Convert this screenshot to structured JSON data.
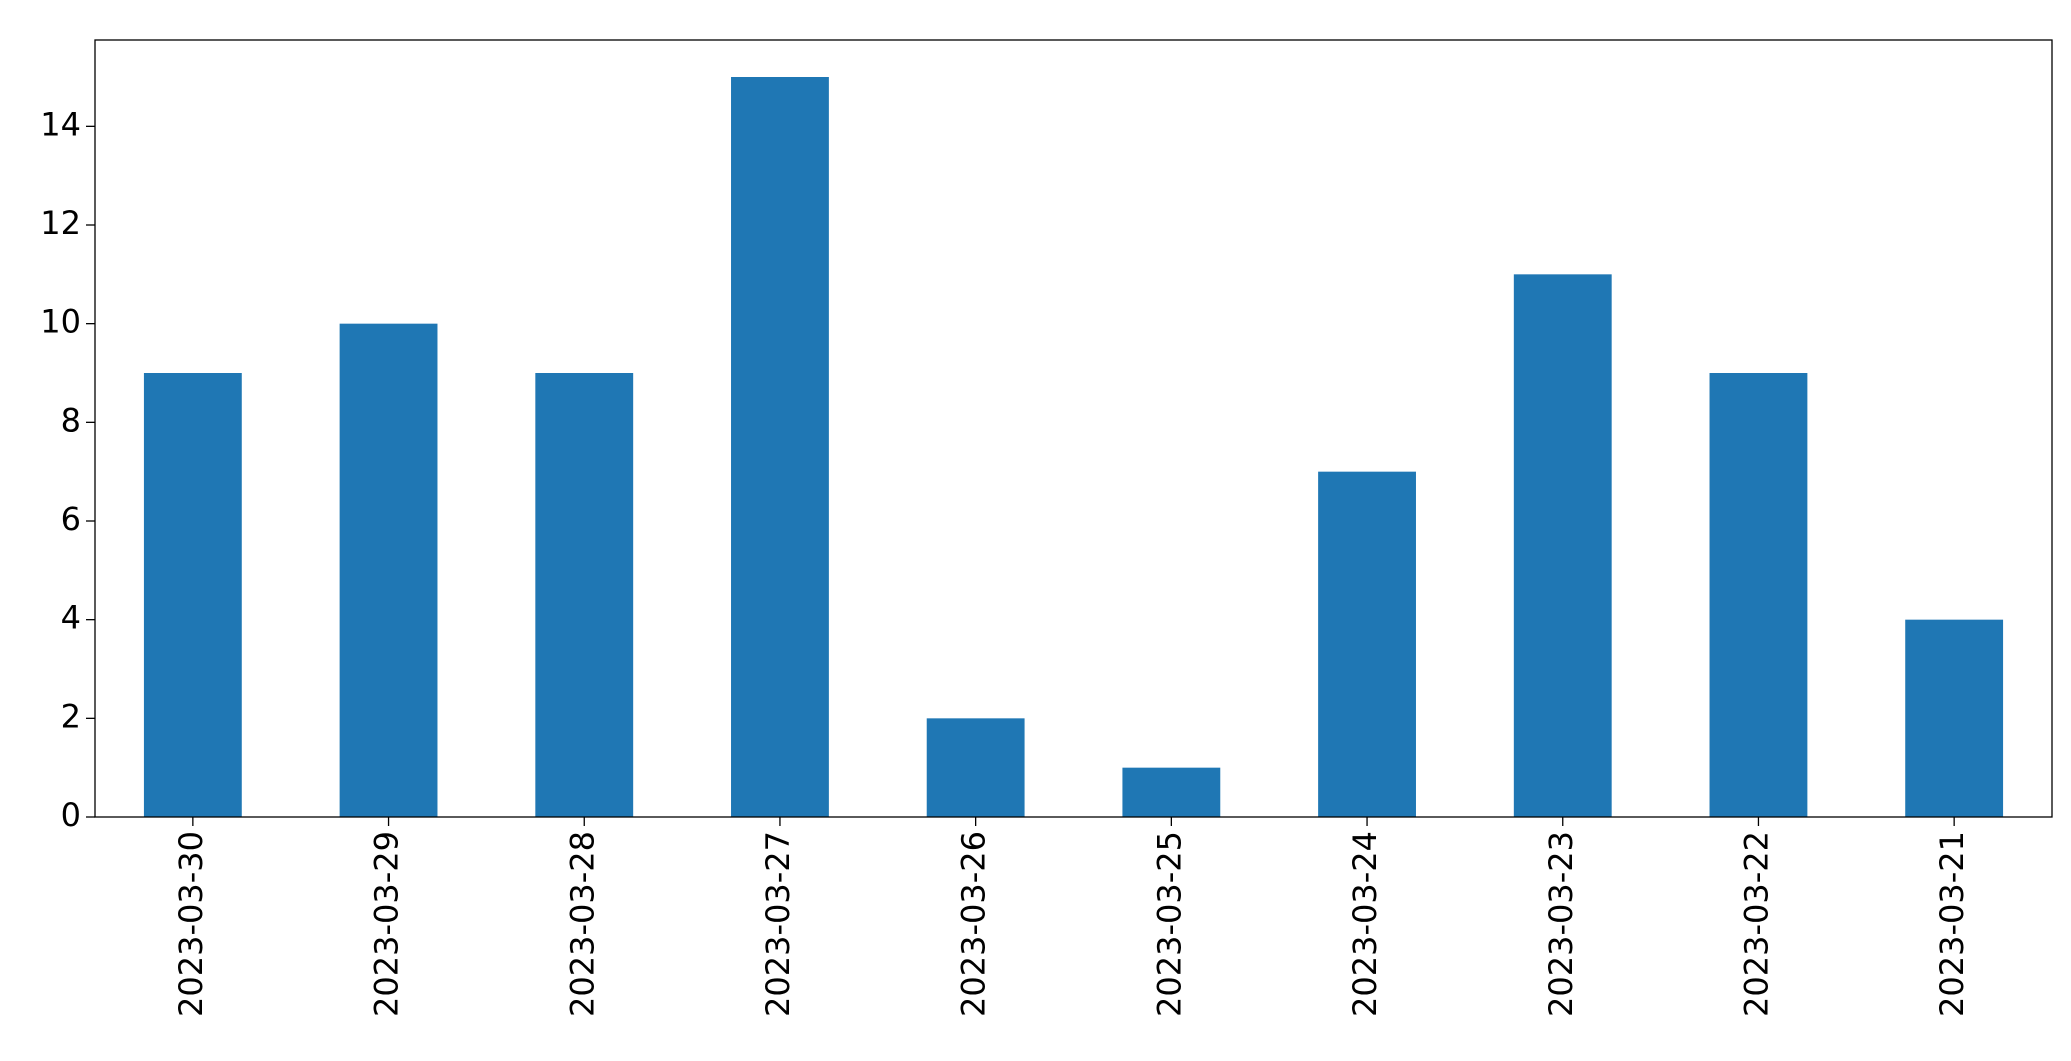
{
  "chart_data": {
    "type": "bar",
    "categories": [
      "2023-03-30",
      "2023-03-29",
      "2023-03-28",
      "2023-03-27",
      "2023-03-26",
      "2023-03-25",
      "2023-03-24",
      "2023-03-23",
      "2023-03-22",
      "2023-03-21"
    ],
    "values": [
      9,
      10,
      9,
      15,
      2,
      1,
      7,
      11,
      9,
      4
    ],
    "color": "#1f77b4",
    "ylim": [
      0,
      15.75
    ],
    "yticks": [
      0,
      2,
      4,
      6,
      8,
      10,
      12,
      14
    ],
    "grid": false
  }
}
